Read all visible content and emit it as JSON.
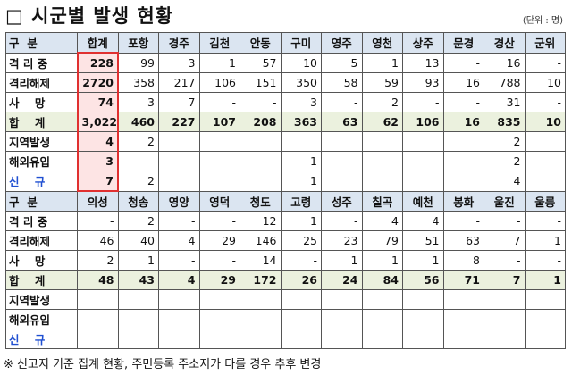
{
  "header": {
    "title": "□ 시군별 발생 현황",
    "unit": "(단위 : 명)"
  },
  "tables": [
    {
      "columns": [
        "구  분",
        "합계",
        "포항",
        "경주",
        "김천",
        "안동",
        "구미",
        "영주",
        "영천",
        "상주",
        "문경",
        "경산",
        "군위"
      ],
      "rows": [
        {
          "label": "격 리 중",
          "cells": [
            "228",
            "99",
            "3",
            "1",
            "57",
            "10",
            "5",
            "1",
            "13",
            "-",
            "16",
            "-"
          ]
        },
        {
          "label": "격리해제",
          "cells": [
            "2720",
            "358",
            "217",
            "106",
            "151",
            "350",
            "58",
            "59",
            "93",
            "16",
            "788",
            "10"
          ]
        },
        {
          "label": "사    망",
          "cells": [
            "74",
            "3",
            "7",
            "-",
            "-",
            "3",
            "-",
            "2",
            "-",
            "-",
            "31",
            "-"
          ]
        },
        {
          "label": "합    계",
          "cells": [
            "3,022",
            "460",
            "227",
            "107",
            "208",
            "363",
            "63",
            "62",
            "106",
            "16",
            "835",
            "10"
          ]
        },
        {
          "label": "지역발생",
          "cells": [
            "4",
            "2",
            null,
            null,
            null,
            null,
            null,
            null,
            null,
            null,
            "2",
            null
          ]
        },
        {
          "label": "해외유입",
          "cells": [
            "3",
            null,
            null,
            null,
            null,
            "1",
            null,
            null,
            null,
            null,
            "2",
            null
          ]
        },
        {
          "label": "신    규",
          "cells": [
            "7",
            "2",
            null,
            null,
            null,
            "1",
            null,
            null,
            null,
            null,
            "4",
            null
          ]
        }
      ]
    },
    {
      "columns": [
        "구  분",
        "의성",
        "청송",
        "영양",
        "영덕",
        "청도",
        "고령",
        "성주",
        "칠곡",
        "예천",
        "봉화",
        "울진",
        "울릉"
      ],
      "rows": [
        {
          "label": "격 리 중",
          "cells": [
            "-",
            "2",
            "-",
            "-",
            "12",
            "1",
            "-",
            "4",
            "4",
            "-",
            "-",
            "-"
          ]
        },
        {
          "label": "격리해제",
          "cells": [
            "46",
            "40",
            "4",
            "29",
            "146",
            "25",
            "23",
            "79",
            "51",
            "63",
            "7",
            "1"
          ]
        },
        {
          "label": "사    망",
          "cells": [
            "2",
            "1",
            "-",
            "-",
            "14",
            "-",
            "1",
            "1",
            "1",
            "8",
            "-",
            "-"
          ]
        },
        {
          "label": "합    계",
          "cells": [
            "48",
            "43",
            "4",
            "29",
            "172",
            "26",
            "24",
            "84",
            "56",
            "71",
            "7",
            "1"
          ]
        },
        {
          "label": "지역발생",
          "cells": [
            null,
            null,
            null,
            null,
            null,
            null,
            null,
            null,
            null,
            null,
            null,
            null
          ]
        },
        {
          "label": "해외유입",
          "cells": [
            null,
            null,
            null,
            null,
            null,
            null,
            null,
            null,
            null,
            null,
            null,
            null
          ]
        },
        {
          "label": "신    규",
          "cells": [
            null,
            null,
            null,
            null,
            null,
            null,
            null,
            null,
            null,
            null,
            null,
            null
          ]
        }
      ]
    }
  ],
  "footnote": "※ 신고지 기준 집계 현황, 주민등록 주소지가 다를 경우 추후 변경"
}
